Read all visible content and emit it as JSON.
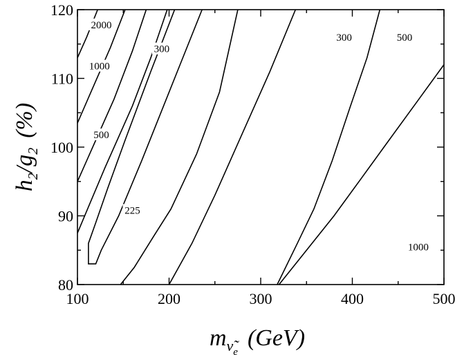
{
  "chart_data": {
    "type": "contour",
    "xlabel": {
      "main": "m",
      "sub": "ν̃",
      "subsub": "e",
      "unit": "(GeV)"
    },
    "ylabel": {
      "h": "h",
      "h_sub": "2",
      "slash": "/g",
      "g_sub": "2",
      "unit": "(%)"
    },
    "xlim": [
      100,
      500
    ],
    "ylim": [
      80,
      120
    ],
    "xticks": [
      100,
      200,
      300,
      400,
      500
    ],
    "yticks": [
      80,
      90,
      100,
      110,
      120
    ],
    "xtick_labels": [
      "100",
      "200",
      "300",
      "400",
      "500"
    ],
    "ytick_labels": [
      "80",
      "90",
      "100",
      "110",
      "120"
    ],
    "grid": false,
    "contours": [
      {
        "level": "225",
        "closed": true,
        "points": [
          [
            236,
            120
          ],
          [
            200,
            108
          ],
          [
            170,
            98
          ],
          [
            145,
            90
          ],
          [
            126,
            85
          ],
          [
            120,
            83
          ],
          [
            112,
            83
          ],
          [
            112,
            86
          ],
          [
            120,
            89
          ],
          [
            133,
            94
          ],
          [
            152,
            101
          ],
          [
            180,
            111
          ],
          [
            206,
            120
          ]
        ],
        "label": {
          "text": "225",
          "x": 160,
          "y": 90.8
        }
      },
      {
        "level": "300",
        "points": [
          [
            147,
            80
          ],
          [
            162,
            82.5
          ],
          [
            183,
            87
          ],
          [
            202,
            91
          ],
          [
            230,
            99
          ],
          [
            255,
            108
          ],
          [
            275,
            120
          ]
        ],
        "label": {
          "text": "300",
          "x": 192,
          "y": 114.3
        }
      },
      {
        "level": "300",
        "points": [
          [
            200,
            80
          ],
          [
            225,
            86
          ],
          [
            250,
            93
          ],
          [
            280,
            102
          ],
          [
            310,
            111
          ],
          [
            338,
            120
          ]
        ],
        "label": {
          "text": "300",
          "x": 391,
          "y": 116
        }
      },
      {
        "level": "500",
        "points": [
          [
            100,
            87.5
          ],
          [
            130,
            97
          ],
          [
            160,
            106
          ],
          [
            180,
            113
          ],
          [
            198,
            120
          ]
        ],
        "label": {
          "text": "500",
          "x": 126,
          "y": 101.8
        }
      },
      {
        "level": "500",
        "points": [
          [
            318,
            80
          ],
          [
            340,
            86
          ],
          [
            358,
            91
          ],
          [
            378,
            98
          ],
          [
            398,
            106
          ],
          [
            416,
            113
          ],
          [
            430,
            120
          ]
        ],
        "label": {
          "text": "500",
          "x": 457,
          "y": 116
        }
      },
      {
        "level": "1000",
        "points": [
          [
            100,
            95
          ],
          [
            120,
            101
          ],
          [
            140,
            107
          ],
          [
            160,
            114
          ],
          [
            175,
            120
          ]
        ],
        "label": {
          "text": "1000",
          "x": 124,
          "y": 111.8
        }
      },
      {
        "level": "1000",
        "points": [
          [
            320,
            80
          ],
          [
            350,
            85
          ],
          [
            380,
            90
          ],
          [
            410,
            95.5
          ],
          [
            440,
            101
          ],
          [
            470,
            106.5
          ],
          [
            500,
            112
          ]
        ],
        "label": {
          "text": "1000",
          "x": 472,
          "y": 85.5
        }
      },
      {
        "level": "2000",
        "points": [
          [
            100,
            103.5
          ],
          [
            118,
            109
          ],
          [
            136,
            114.5
          ],
          [
            152,
            120
          ]
        ],
        "label": {
          "text": "2000",
          "x": 126,
          "y": 117.8
        }
      },
      {
        "level": "",
        "points": [
          [
            100,
            113
          ],
          [
            110,
            116
          ],
          [
            122,
            120
          ]
        ]
      }
    ]
  }
}
